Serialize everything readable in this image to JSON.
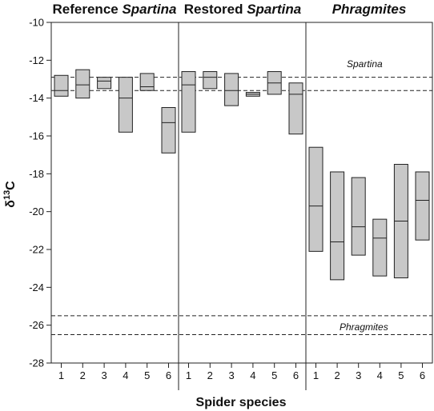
{
  "chart_data": {
    "type": "box",
    "xlabel": "Spider species",
    "ylabel": {
      "prefix": "δ",
      "sup": "13",
      "suffix": "C"
    },
    "ylim": [
      -28,
      -10
    ],
    "yticks": [
      -10,
      -12,
      -14,
      -16,
      -18,
      -20,
      -22,
      -24,
      -26,
      -28
    ],
    "grid": false,
    "panels": [
      {
        "title_plain": "Reference ",
        "title_italic": "Spartina",
        "categories": [
          "1",
          "2",
          "3",
          "4",
          "5",
          "6"
        ],
        "boxes": [
          {
            "low": -13.9,
            "median": -13.6,
            "high": -12.8
          },
          {
            "low": -14.0,
            "median": -13.3,
            "high": -12.5
          },
          {
            "low": -13.5,
            "median": -13.1,
            "high": -12.9
          },
          {
            "low": -15.8,
            "median": -14.0,
            "high": -12.9
          },
          {
            "low": -13.6,
            "median": -13.4,
            "high": -12.7
          },
          {
            "low": -16.9,
            "median": -15.3,
            "high": -14.5
          }
        ]
      },
      {
        "title_plain": "Restored ",
        "title_italic": "Spartina",
        "categories": [
          "1",
          "2",
          "3",
          "4",
          "5",
          "6"
        ],
        "boxes": [
          {
            "low": -15.8,
            "median": -13.3,
            "high": -12.6
          },
          {
            "low": -13.5,
            "median": -12.9,
            "high": -12.6
          },
          {
            "low": -14.4,
            "median": -13.6,
            "high": -12.7
          },
          {
            "low": -13.9,
            "median": -13.8,
            "high": -13.7
          },
          {
            "low": -13.8,
            "median": -13.2,
            "high": -12.6
          },
          {
            "low": -15.9,
            "median": -13.8,
            "high": -13.2
          }
        ]
      },
      {
        "title_plain": "",
        "title_italic": "Phragmites",
        "categories": [
          "1",
          "2",
          "3",
          "4",
          "5",
          "6"
        ],
        "boxes": [
          {
            "low": -22.1,
            "median": -19.7,
            "high": -16.6
          },
          {
            "low": -23.6,
            "median": -21.6,
            "high": -17.9
          },
          {
            "low": -22.3,
            "median": -20.8,
            "high": -18.2
          },
          {
            "low": -23.4,
            "median": -21.4,
            "high": -20.4
          },
          {
            "low": -23.5,
            "median": -20.5,
            "high": -17.5
          },
          {
            "low": -21.5,
            "median": -19.4,
            "high": -17.9
          }
        ]
      }
    ],
    "reference_bands": [
      {
        "label": "Spartina",
        "lines": [
          -12.9,
          -13.6
        ]
      },
      {
        "label": "Phragmites",
        "lines": [
          -25.5,
          -26.5
        ]
      }
    ],
    "colors": {
      "box_fill": "#c8c8c8",
      "stroke": "#222222"
    }
  }
}
